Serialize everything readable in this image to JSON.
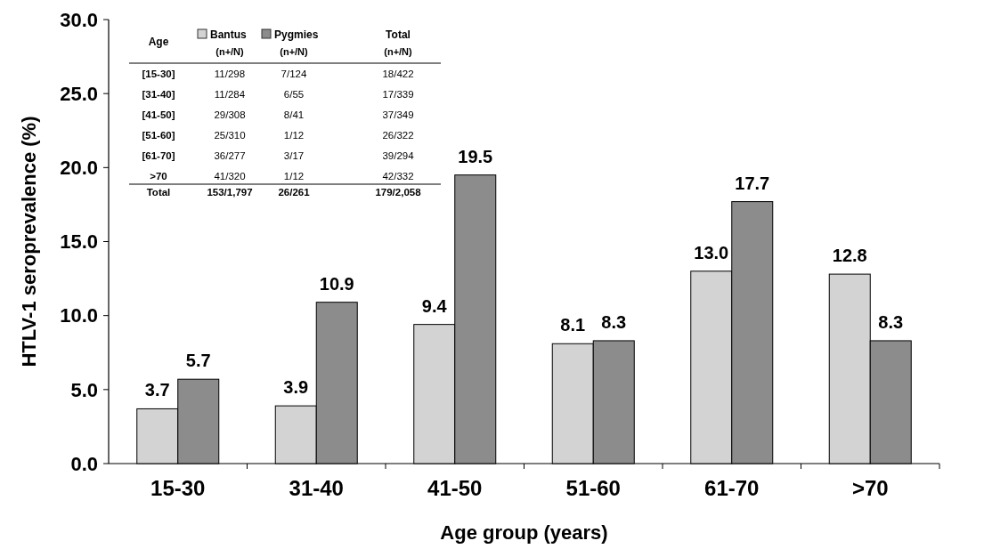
{
  "chart_data": {
    "type": "bar",
    "xlabel": "Age group (years)",
    "ylabel": "HTLV-1 seroprevalence (%)",
    "categories": [
      "15-30",
      "31-40",
      "41-50",
      "51-60",
      "61-70",
      ">70"
    ],
    "series": [
      {
        "name": "Bantus",
        "color": "#d3d3d3",
        "values": [
          3.7,
          3.9,
          9.4,
          8.1,
          13.0,
          12.8
        ],
        "value_labels": [
          "3.7",
          "3.9",
          "9.4",
          "8.1",
          "13.0",
          "12.8"
        ]
      },
      {
        "name": "Pygmies",
        "color": "#8c8c8c",
        "values": [
          5.7,
          10.9,
          19.5,
          8.3,
          17.7,
          8.3
        ],
        "value_labels": [
          "5.7",
          "10.9",
          "19.5",
          "8.3",
          "17.7",
          "8.3"
        ]
      }
    ],
    "ylim": [
      0,
      30
    ],
    "yticks": [
      {
        "value": 0,
        "label": "0.0"
      },
      {
        "value": 5,
        "label": "5.0"
      },
      {
        "value": 10,
        "label": "10.0"
      },
      {
        "value": 15,
        "label": "15.0"
      },
      {
        "value": 20,
        "label": "20.0"
      },
      {
        "value": 25,
        "label": "25.0"
      },
      {
        "value": 30,
        "label": "30.0"
      }
    ],
    "legend": "top left",
    "annotations": [
      "Age",
      "(n+/N)",
      "(n+/N)",
      "Total",
      "(n+/N)",
      "[15-30]",
      "11/298",
      "7/124",
      "18/422",
      "[31-40]",
      "11/284",
      "6/55",
      "17/339",
      "[41-50]",
      "29/308",
      "8/41",
      "37/349",
      "[51-60]",
      "25/310",
      "1/12",
      "26/322",
      "[61-70]",
      "36/277",
      "3/17",
      "39/294",
      ">70",
      "41/320",
      "1/12",
      "42/332",
      "Total",
      "153/1,797",
      "26/261",
      "179/2,058"
    ]
  }
}
